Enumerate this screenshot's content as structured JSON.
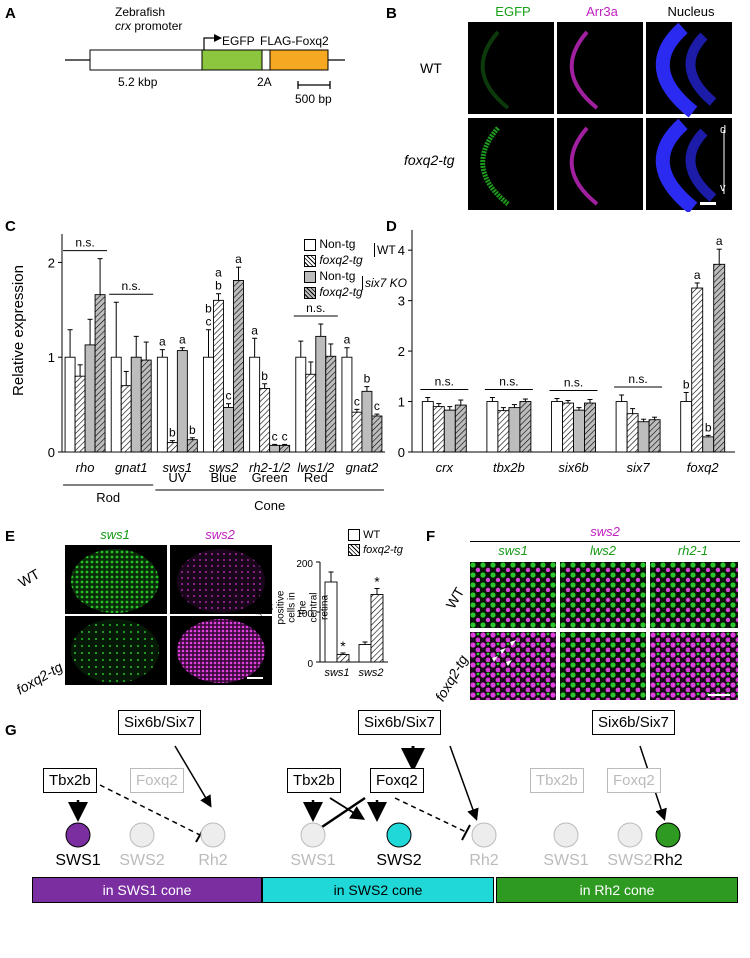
{
  "panels": {
    "A": "A",
    "B": "B",
    "C": "C",
    "D": "D",
    "E": "E",
    "F": "F",
    "G": "G"
  },
  "panel_a": {
    "species_label": "Zebrafish",
    "promoter_gene": "crx",
    "promoter_word": "promoter",
    "promoter_size": "5.2 kbp",
    "egfp": "EGFP",
    "linker": "2A",
    "flag": "FLAG-Foxq2",
    "scale": "500 bp"
  },
  "panel_b": {
    "columns": [
      "EGFP",
      "Arr3a",
      "Nucleus"
    ],
    "column_colors": [
      "#18a018",
      "#c020c0",
      "#1a1ad8"
    ],
    "rows": [
      "WT",
      "foxq2-tg"
    ],
    "axis_d": "d",
    "axis_v": "v"
  },
  "chart_data": [
    {
      "panel": "C",
      "type": "bar",
      "ylabel": "Relative expression",
      "ylim": [
        0,
        2.3
      ],
      "yticks": [
        "0",
        "1",
        "2"
      ],
      "categories": [
        "rho",
        "gnat1",
        "sws1",
        "sws2",
        "rh2-1/2",
        "lws1/2",
        "gnat2"
      ],
      "category_groups": [
        {
          "label": "Rod",
          "sub": ""
        },
        {
          "label": "Cone",
          "sub": ""
        }
      ],
      "cone_subtypes": [
        "UV",
        "Blue",
        "Green",
        "Red"
      ],
      "legend": {
        "series": [
          "Non-tg",
          "foxq2-tg",
          "Non-tg",
          "foxq2-tg"
        ],
        "groups": [
          "WT",
          "six7 KO"
        ]
      },
      "series": [
        {
          "name": "Non-tg (WT)",
          "fill": "white",
          "values": [
            1.0,
            1.0,
            1.0,
            1.0,
            1.0,
            1.0,
            1.0
          ],
          "errors": [
            0.29,
            0.58,
            0.08,
            0.29,
            0.2,
            0.17,
            0.1
          ]
        },
        {
          "name": "foxq2-tg (WT)",
          "fill": "hatch",
          "values": [
            0.8,
            0.7,
            0.1,
            1.6,
            0.67,
            0.82,
            0.42
          ],
          "errors": [
            0.12,
            0.15,
            0.02,
            0.07,
            0.05,
            0.13,
            0.03
          ]
        },
        {
          "name": "Non-tg (six7 KO)",
          "fill": "gray",
          "values": [
            1.13,
            1.0,
            1.07,
            0.47,
            0.07,
            1.22,
            0.64
          ],
          "errors": [
            0.27,
            0.22,
            0.03,
            0.04,
            0.01,
            0.13,
            0.05
          ]
        },
        {
          "name": "foxq2-tg (six7 KO)",
          "fill": "graphatch",
          "values": [
            1.66,
            0.97,
            0.13,
            1.81,
            0.07,
            1.01,
            0.38
          ],
          "errors": [
            0.38,
            0.19,
            0.02,
            0.14,
            0.01,
            0.13,
            0.02
          ]
        }
      ],
      "annotations": [
        {
          "category": "rho",
          "text": "n.s."
        },
        {
          "category": "gnat1",
          "text": "n.s."
        },
        {
          "category": "lws1/2",
          "text": "n.s."
        },
        {
          "category": "sws1",
          "bars": [
            "a",
            "b",
            "a",
            "b"
          ]
        },
        {
          "category": "sws2",
          "bars": [
            "b c",
            "a b",
            "c",
            "a"
          ]
        },
        {
          "category": "rh2-1/2",
          "bars": [
            "a",
            "b",
            "c",
            "c"
          ]
        },
        {
          "category": "gnat2",
          "bars": [
            "a",
            "c",
            "b",
            "c"
          ]
        }
      ]
    },
    {
      "panel": "D",
      "type": "bar",
      "ylabel": "",
      "ylim": [
        0,
        4.4
      ],
      "yticks": [
        "0",
        "1",
        "2",
        "3",
        "4"
      ],
      "categories": [
        "crx",
        "tbx2b",
        "six6b",
        "six7",
        "foxq2"
      ],
      "series": [
        {
          "name": "Non-tg (WT)",
          "fill": "white",
          "values": [
            1.0,
            1.0,
            1.0,
            1.0,
            1.0
          ],
          "errors": [
            0.08,
            0.08,
            0.06,
            0.13,
            0.18
          ]
        },
        {
          "name": "foxq2-tg (WT)",
          "fill": "hatch",
          "values": [
            0.9,
            0.82,
            0.97,
            0.76,
            3.25
          ],
          "errors": [
            0.06,
            0.06,
            0.05,
            0.1,
            0.1
          ]
        },
        {
          "name": "Non-tg (six7 KO)",
          "fill": "gray",
          "values": [
            0.83,
            0.88,
            0.83,
            0.6,
            0.3
          ],
          "errors": [
            0.07,
            0.06,
            0.05,
            0.05,
            0.03
          ]
        },
        {
          "name": "foxq2-tg (six7 KO)",
          "fill": "graphatch",
          "values": [
            0.93,
            1.0,
            0.97,
            0.64,
            3.72
          ],
          "errors": [
            0.1,
            0.05,
            0.07,
            0.05,
            0.3
          ]
        }
      ],
      "annotations": [
        {
          "category": "crx",
          "text": "n.s."
        },
        {
          "category": "tbx2b",
          "text": "n.s."
        },
        {
          "category": "six6b",
          "text": "n.s."
        },
        {
          "category": "six7",
          "text": "n.s."
        },
        {
          "category": "foxq2",
          "bars": [
            "b",
            "a",
            "b",
            "a"
          ]
        }
      ]
    },
    {
      "panel": "E",
      "type": "bar",
      "ylabel": "Number of positive cells in the central retina",
      "ylim": [
        0,
        200
      ],
      "yticks": [
        "0",
        "100",
        "200"
      ],
      "categories": [
        "sws1",
        "sws2"
      ],
      "legend": [
        "WT",
        "foxq2-tg"
      ],
      "series": [
        {
          "name": "WT",
          "fill": "white",
          "values": [
            160,
            35
          ],
          "errors": [
            20,
            5
          ]
        },
        {
          "name": "foxq2-tg",
          "fill": "hatch",
          "values": [
            15,
            135
          ],
          "errors": [
            3,
            12
          ]
        }
      ],
      "annotations": [
        {
          "category": "sws1",
          "text": "*"
        },
        {
          "category": "sws2",
          "text": "*"
        }
      ]
    }
  ],
  "panel_e": {
    "columns": [
      "sws1",
      "sws2"
    ],
    "column_colors": [
      "#159a15",
      "#c020c0"
    ],
    "rows": [
      "WT",
      "foxq2-tg"
    ]
  },
  "panel_f": {
    "top": "sws2",
    "columns": [
      "sws1",
      "lws2",
      "rh2-1"
    ],
    "rows": [
      "WT",
      "foxq2-tg"
    ]
  },
  "panel_g": {
    "regulators": {
      "six": "Six6b/Six7",
      "tbx": "Tbx2b",
      "foxq": "Foxq2"
    },
    "opsins": [
      "SWS1",
      "SWS2",
      "Rh2"
    ],
    "cones": [
      "in SWS1 cone",
      "in SWS2 cone",
      "in Rh2 cone"
    ],
    "colors": {
      "sws1": "#7b2ea0",
      "sws2": "#20d8d8",
      "rh2": "#2f9a22",
      "inactive": "#bdbdbd"
    }
  }
}
